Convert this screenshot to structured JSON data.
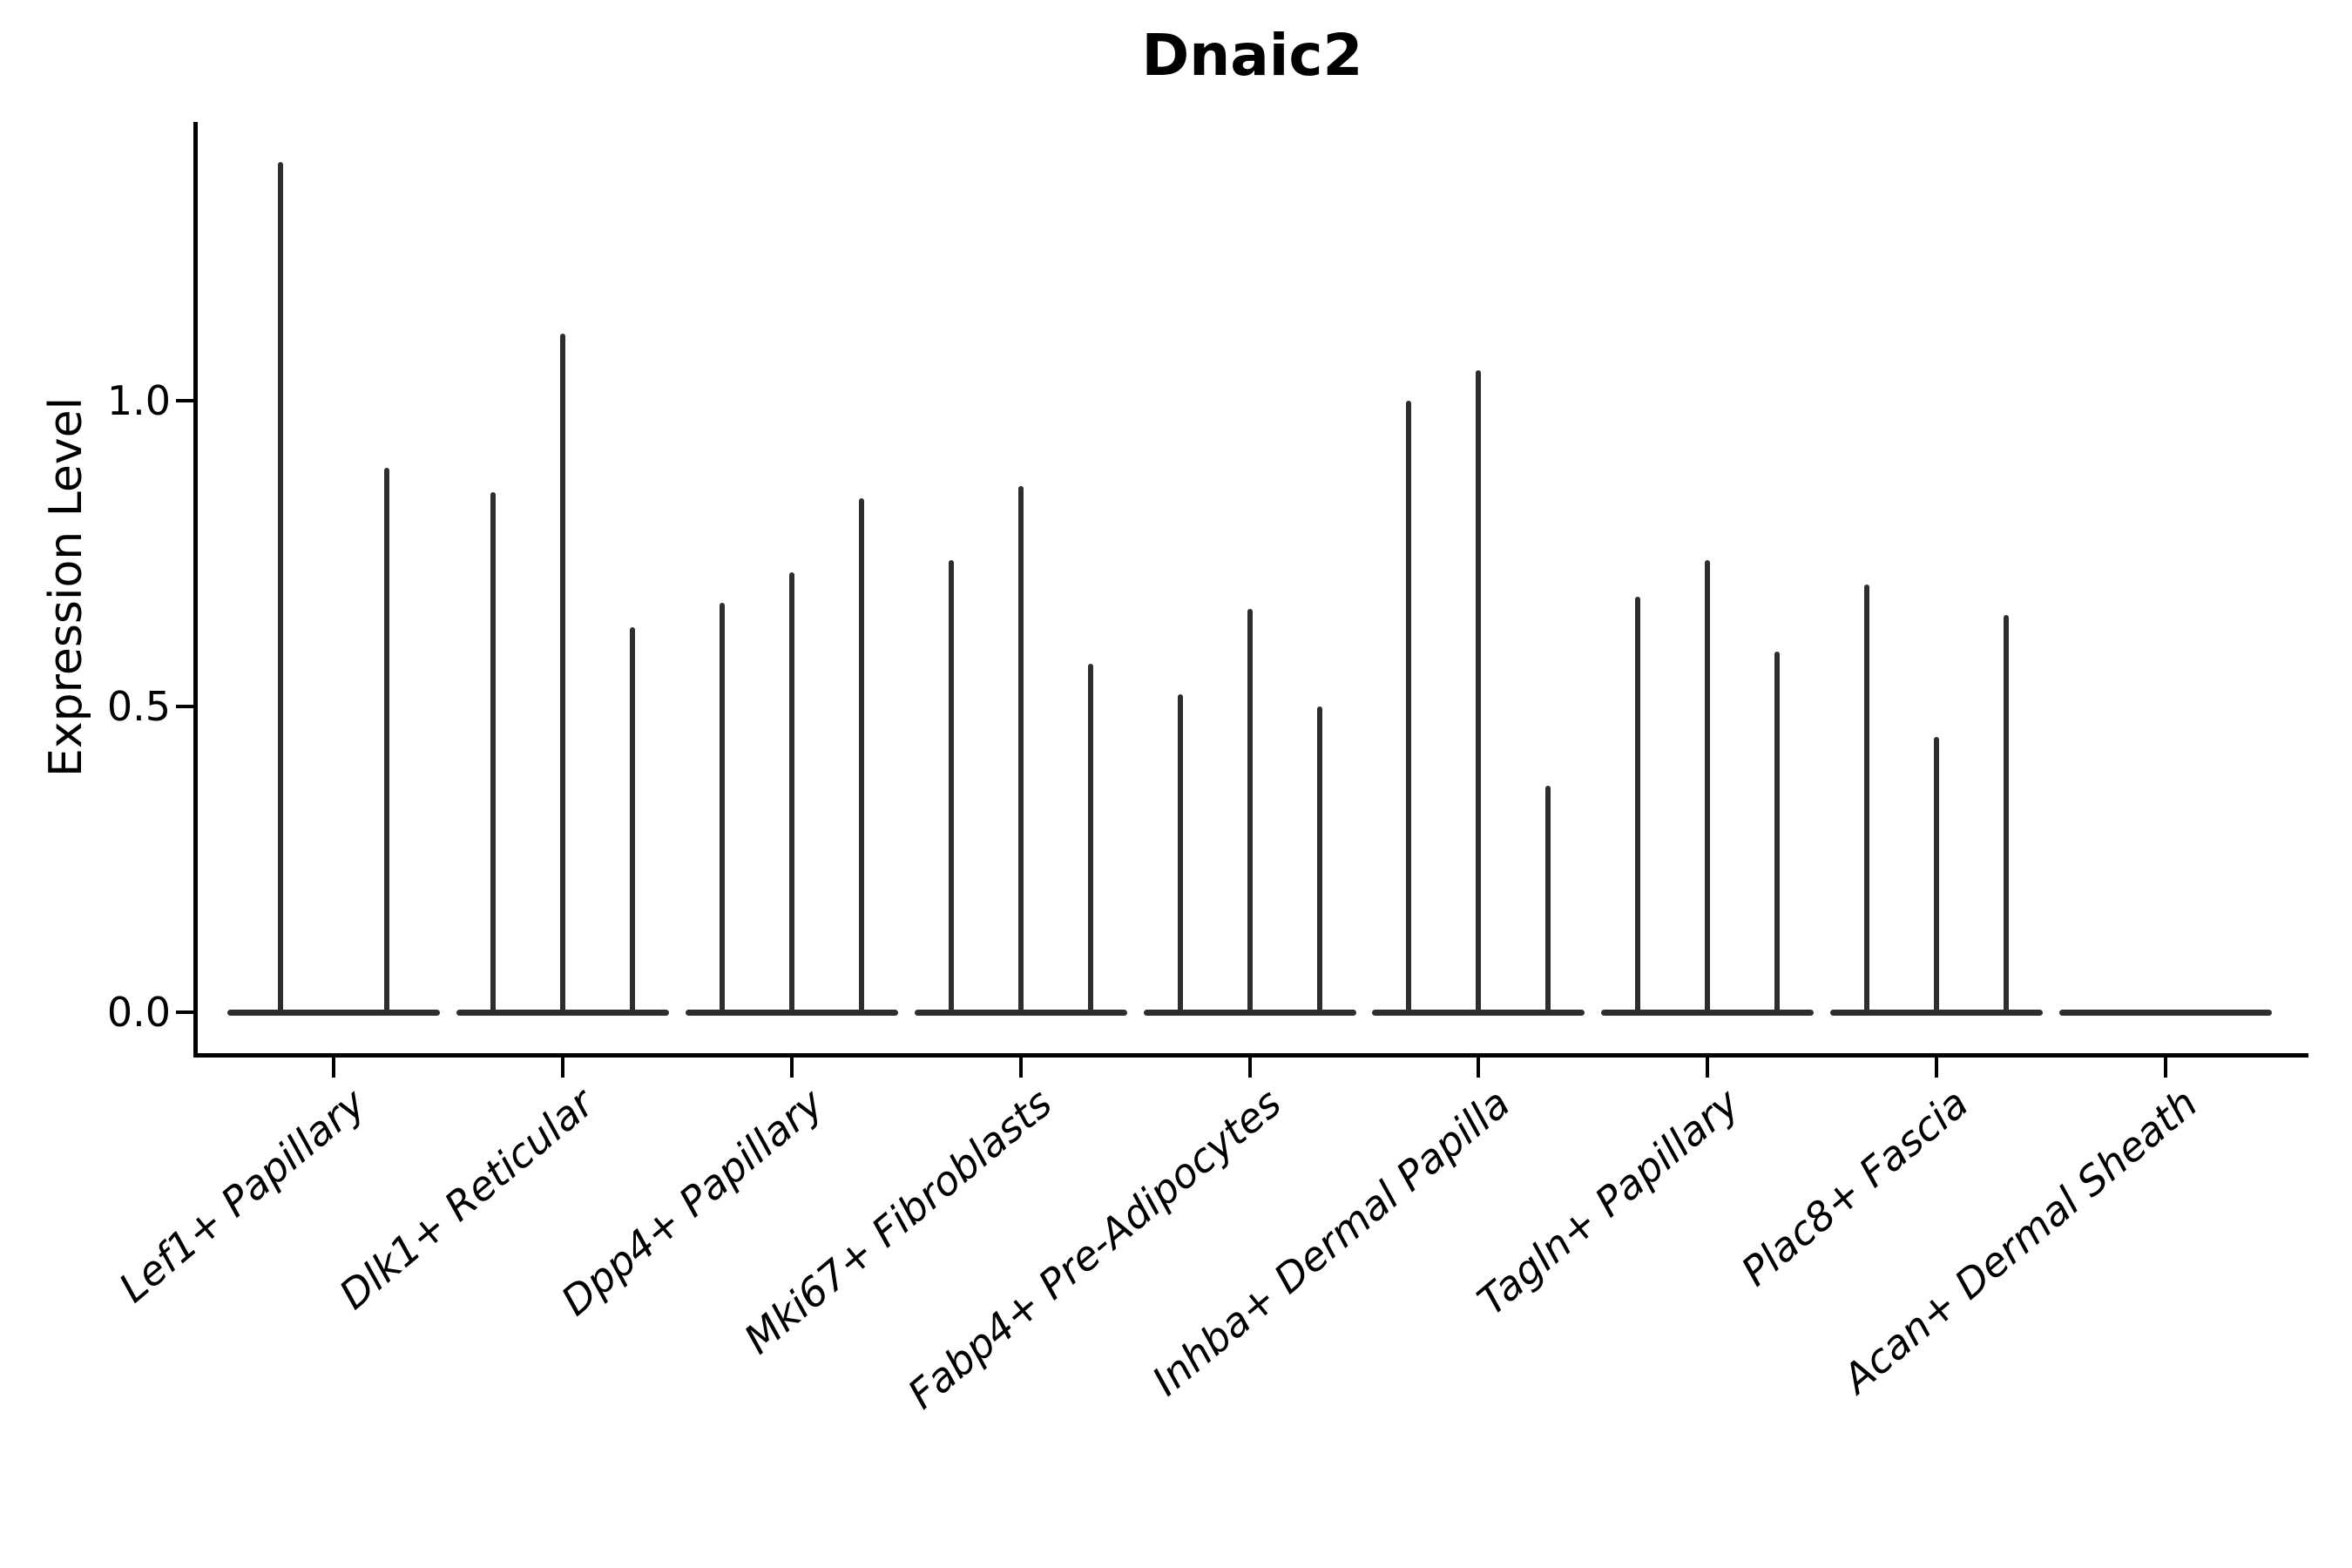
{
  "chart_data": {
    "type": "violin",
    "title": "Dnaic2",
    "xlabel": "",
    "ylabel": "Expression Level",
    "ylim": [
      0.0,
      1.45
    ],
    "yticks": [
      0.0,
      0.5,
      1.0
    ],
    "grid": false,
    "legend": "none",
    "style_note": "Thin spike-like violins rising from a flat dense base at expression 0; black axes, despined top/right, rotated italic x labels",
    "categories": [
      {
        "label": "Lef1+ Papillary",
        "violin_max_values": [
          1.39,
          0.89
        ]
      },
      {
        "label": "Dlk1+ Reticular",
        "violin_max_values": [
          0.85,
          1.11,
          0.63
        ]
      },
      {
        "label": "Dpp4+ Papillary",
        "violin_max_values": [
          0.67,
          0.72,
          0.84
        ]
      },
      {
        "label": "Mki67+ Fibroblasts",
        "violin_max_values": [
          0.74,
          0.86,
          0.57
        ]
      },
      {
        "label": "Fabp4+ Pre-Adipocytes",
        "violin_max_values": [
          0.52,
          0.66,
          0.5
        ]
      },
      {
        "label": "Inhba+ Dermal Papilla",
        "violin_max_values": [
          1.0,
          1.05,
          0.37
        ]
      },
      {
        "label": "Tagln+ Papillary",
        "violin_max_values": [
          0.68,
          0.74,
          0.59
        ]
      },
      {
        "label": "Plac8+ Fascia",
        "violin_max_values": [
          0.7,
          0.45,
          0.65
        ]
      },
      {
        "label": "Acan+ Dermal Sheath",
        "violin_max_values": []
      }
    ],
    "colors": {
      "violin": "#2e2e2e",
      "axis": "#000000",
      "background": "#ffffff"
    }
  }
}
